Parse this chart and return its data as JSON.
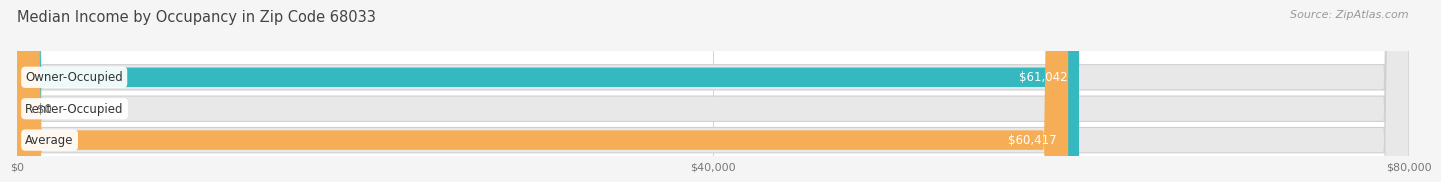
{
  "title": "Median Income by Occupancy in Zip Code 68033",
  "source": "Source: ZipAtlas.com",
  "categories": [
    "Owner-Occupied",
    "Renter-Occupied",
    "Average"
  ],
  "values": [
    61042,
    0,
    60417
  ],
  "bar_colors": [
    "#35b8c0",
    "#c4a0d0",
    "#f5ae55"
  ],
  "value_labels": [
    "$61,042",
    "$0",
    "$60,417"
  ],
  "value_label_inside": [
    true,
    false,
    true
  ],
  "xlim": [
    0,
    80000
  ],
  "xticks": [
    0,
    40000,
    80000
  ],
  "xticklabels": [
    "$0",
    "$40,000",
    "$80,000"
  ],
  "plot_bg_color": "#ffffff",
  "fig_bg_color": "#f5f5f5",
  "bar_bg_color": "#e8e8e8",
  "bar_bg_edge_color": "#d0d0d0",
  "bar_height": 0.62,
  "title_fontsize": 10.5,
  "source_fontsize": 8,
  "label_fontsize": 8.5,
  "tick_fontsize": 8,
  "grid_color": "#cccccc"
}
